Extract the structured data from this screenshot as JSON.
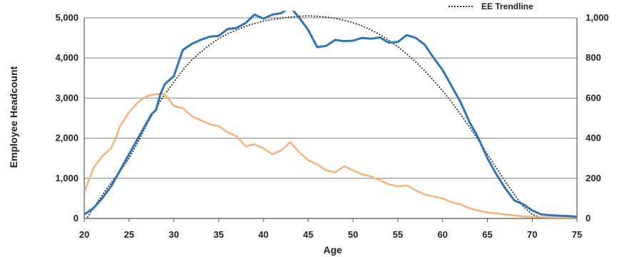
{
  "chart_data": {
    "type": "line",
    "title": "",
    "xlabel": "Age",
    "ylabel": "Employee Headcount",
    "y2label": "",
    "xlim": [
      20,
      75
    ],
    "ylim": [
      0,
      5000
    ],
    "y2lim": [
      0,
      1000
    ],
    "x_ticks": [
      "20",
      "25",
      "30",
      "35",
      "40",
      "45",
      "50",
      "55",
      "60",
      "65",
      "70",
      "75"
    ],
    "y_ticks": [
      "0",
      "1,000",
      "2,000",
      "3,000",
      "4,000",
      "5,000"
    ],
    "y2_ticks": [
      "0",
      "200",
      "400",
      "600",
      "800",
      "1,000"
    ],
    "grid": "horizontal",
    "legend_position": "top-right",
    "colors": {
      "employees": "#2e75b6",
      "secondary": "#f7b27a",
      "trendline": "#333333",
      "grid": "#7f7f7f"
    },
    "series": [
      {
        "name": "",
        "axis": "left",
        "color": "#2e75b6",
        "x": [
          20,
          21,
          22,
          23,
          24,
          25,
          26,
          27,
          27.5,
          28,
          28.5,
          29,
          30,
          31,
          32,
          33,
          34,
          35,
          36,
          37,
          38,
          39,
          40,
          41,
          42,
          43,
          44,
          45,
          46,
          47,
          48,
          49,
          50,
          51,
          52,
          53,
          54,
          55,
          56,
          57,
          58,
          59,
          60,
          61,
          62,
          63,
          64,
          65,
          66,
          67,
          68,
          69,
          70,
          71,
          72,
          73,
          74,
          75
        ],
        "values": [
          100,
          250,
          500,
          800,
          1200,
          1600,
          2000,
          2400,
          2600,
          2700,
          3100,
          3350,
          3550,
          4200,
          4350,
          4450,
          4530,
          4550,
          4720,
          4750,
          4870,
          5080,
          4980,
          5080,
          5120,
          5270,
          5000,
          4700,
          4270,
          4300,
          4450,
          4420,
          4430,
          4500,
          4480,
          4510,
          4380,
          4400,
          4570,
          4500,
          4330,
          4000,
          3700,
          3300,
          2900,
          2400,
          2000,
          1500,
          1100,
          750,
          450,
          350,
          200,
          100,
          80,
          70,
          60,
          40
        ]
      },
      {
        "name": "",
        "axis": "right",
        "color": "#f7b27a",
        "x": [
          20,
          21,
          22,
          23,
          23.5,
          24,
          25,
          26,
          27,
          28,
          29,
          30,
          31,
          32,
          33,
          34,
          35,
          36,
          37,
          38,
          39,
          40,
          41,
          42,
          43,
          44,
          45,
          46,
          47,
          48,
          49,
          50,
          51,
          52,
          53,
          54,
          55,
          56,
          57,
          58,
          59,
          60,
          61,
          62,
          63,
          64,
          65,
          66,
          67,
          68,
          69,
          70,
          71,
          72,
          73,
          74,
          75
        ],
        "values": [
          130,
          250,
          310,
          350,
          400,
          460,
          530,
          580,
          610,
          620,
          620,
          560,
          550,
          510,
          490,
          470,
          460,
          430,
          410,
          360,
          370,
          350,
          320,
          340,
          380,
          330,
          290,
          270,
          240,
          230,
          260,
          240,
          220,
          210,
          190,
          170,
          160,
          165,
          140,
          120,
          110,
          100,
          80,
          70,
          50,
          40,
          30,
          25,
          20,
          15,
          10,
          8,
          6,
          5,
          4,
          3,
          2
        ]
      },
      {
        "name": "EE Trendline",
        "axis": "left",
        "color": "#333333",
        "dashed": true,
        "x": [
          20,
          21,
          22,
          23,
          24,
          25,
          26,
          27,
          28,
          29,
          30,
          31,
          32,
          33,
          34,
          35,
          36,
          37,
          38,
          39,
          40,
          41,
          42,
          43,
          44,
          45,
          46,
          47,
          48,
          49,
          50,
          51,
          52,
          53,
          54,
          55,
          56,
          57,
          58,
          59,
          60,
          61,
          62,
          63,
          64,
          65,
          66,
          67,
          68,
          69,
          70,
          71,
          72,
          73,
          74,
          75
        ],
        "values": [
          -100,
          250,
          580,
          890,
          1180,
          1500,
          1900,
          2350,
          2750,
          3100,
          3400,
          3700,
          3950,
          4150,
          4330,
          4480,
          4600,
          4700,
          4790,
          4860,
          4920,
          4960,
          4990,
          5020,
          5040,
          5050,
          5040,
          5020,
          4990,
          4940,
          4880,
          4800,
          4700,
          4580,
          4440,
          4280,
          4100,
          3900,
          3680,
          3440,
          3180,
          2900,
          2600,
          2280,
          1950,
          1600,
          1260,
          920,
          600,
          300,
          100,
          20,
          0,
          0,
          0,
          0
        ]
      }
    ]
  }
}
